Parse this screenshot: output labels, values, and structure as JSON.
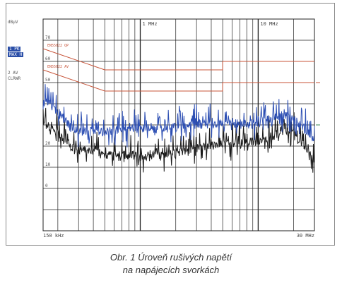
{
  "chart_data": {
    "type": "line",
    "unit_label": "dBµV",
    "xscale": "log",
    "xlim_hz": [
      150000,
      30000000
    ],
    "ylim": [
      -20,
      80
    ],
    "x_tick_labels": [
      {
        "value": 150000,
        "label": "150 kHz"
      },
      {
        "value": 1000000,
        "label": "1 MHz"
      },
      {
        "value": 10000000,
        "label": "10 MHz"
      },
      {
        "value": 30000000,
        "label": "30 MHz"
      }
    ],
    "y_tick_labels": [
      {
        "value": 70,
        "label": "70"
      },
      {
        "value": 60,
        "label": "60"
      },
      {
        "value": 50,
        "label": "50"
      },
      {
        "value": 20,
        "label": "20"
      },
      {
        "value": 10,
        "label": "10"
      },
      {
        "value": 0,
        "label": "0"
      }
    ],
    "limit_lines": [
      {
        "name": "EN55022",
        "label": "EN55022 QP",
        "color": "#c8553a",
        "points": [
          [
            150000,
            66
          ],
          [
            500000,
            56
          ],
          [
            5000000,
            56
          ],
          [
            5000000,
            60
          ],
          [
            30000000,
            60
          ]
        ]
      },
      {
        "name": "EN55022 AV",
        "label": "EN55022 AV",
        "color": "#c8553a",
        "points": [
          [
            150000,
            56
          ],
          [
            500000,
            46
          ],
          [
            5000000,
            46
          ],
          [
            5000000,
            50
          ],
          [
            30000000,
            50
          ]
        ]
      }
    ],
    "series": [
      {
        "name": "1 PK MAX H",
        "color": "#2d4fb3",
        "points": [
          [
            150000,
            42
          ],
          [
            170000,
            40
          ],
          [
            200000,
            36
          ],
          [
            230000,
            32
          ],
          [
            270000,
            28
          ],
          [
            330000,
            27
          ],
          [
            400000,
            27
          ],
          [
            500000,
            26.5
          ],
          [
            700000,
            27
          ],
          [
            1000000,
            28
          ],
          [
            1500000,
            28
          ],
          [
            2000000,
            29
          ],
          [
            3000000,
            30
          ],
          [
            5000000,
            30.5
          ],
          [
            7000000,
            31
          ],
          [
            10000000,
            31
          ],
          [
            13000000,
            33
          ],
          [
            16000000,
            35
          ],
          [
            20000000,
            33
          ],
          [
            25000000,
            28
          ],
          [
            30000000,
            23
          ]
        ]
      },
      {
        "name": "2 AV CLRWR",
        "color": "#1a1a1a",
        "points": [
          [
            150000,
            31
          ],
          [
            170000,
            29
          ],
          [
            200000,
            26
          ],
          [
            230000,
            22
          ],
          [
            270000,
            19
          ],
          [
            330000,
            18
          ],
          [
            400000,
            17.5
          ],
          [
            500000,
            16
          ],
          [
            700000,
            16
          ],
          [
            1000000,
            15
          ],
          [
            1500000,
            16
          ],
          [
            2000000,
            17
          ],
          [
            3000000,
            19
          ],
          [
            5000000,
            21
          ],
          [
            7000000,
            22
          ],
          [
            10000000,
            22
          ],
          [
            13000000,
            24
          ],
          [
            16000000,
            27
          ],
          [
            20000000,
            26
          ],
          [
            25000000,
            20
          ],
          [
            30000000,
            13
          ]
        ]
      }
    ]
  },
  "top_freq_labels": {
    "mhz1": "1 MHz",
    "mhz10": "10 MHz"
  },
  "bottom_freq_labels": {
    "start": "150 kHz",
    "stop": "30 MHz"
  },
  "trace_labels": {
    "t1a": "1 PK",
    "t1b": "MAX H",
    "t2a": "2 AV",
    "t2b": "CLRWR"
  },
  "colors": {
    "limit": "#c8553a",
    "peak": "#2d4fb3",
    "average": "#1a1a1a",
    "grid": "#222222"
  },
  "caption": {
    "line1": "Obr. 1  Úroveň rušivých napětí",
    "line2": "na napájecích svorkách"
  }
}
